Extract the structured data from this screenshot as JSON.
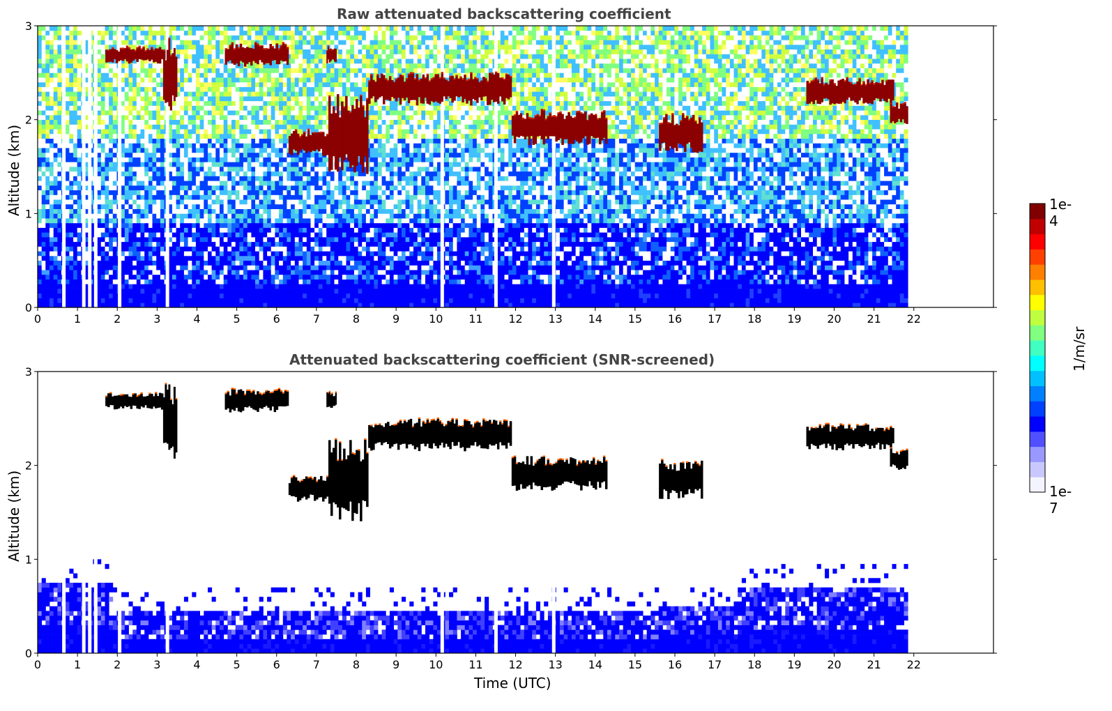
{
  "chart_data": [
    {
      "type": "heatmap",
      "title": "Raw attenuated backscattering coefficient",
      "xlabel": "",
      "ylabel": "Altitude (km)",
      "xlim": [
        0,
        24
      ],
      "ylim": [
        0,
        3
      ],
      "xticks": [
        "0",
        "1",
        "2",
        "3",
        "4",
        "5",
        "6",
        "7",
        "8",
        "9",
        "10",
        "11",
        "12",
        "13",
        "14",
        "15",
        "16",
        "17",
        "18",
        "19",
        "20",
        "21",
        "22"
      ],
      "yticks": [
        "0",
        "1",
        "2",
        "3"
      ],
      "data_end_hour": 21.85,
      "colorscale": "jet",
      "cloud_layers": [
        {
          "start": 1.7,
          "end": 3.2,
          "altitude": [
            2.62,
            2.75
          ]
        },
        {
          "start": 3.15,
          "end": 3.5,
          "altitude": [
            2.15,
            2.75
          ]
        },
        {
          "start": 4.7,
          "end": 6.3,
          "altitude": [
            2.6,
            2.78
          ]
        },
        {
          "start": 7.25,
          "end": 7.5,
          "altitude": [
            2.62,
            2.76
          ]
        },
        {
          "start": 6.3,
          "end": 7.3,
          "altitude": [
            1.65,
            1.85
          ]
        },
        {
          "start": 7.3,
          "end": 8.3,
          "altitude": [
            1.52,
            2.15
          ]
        },
        {
          "start": 8.3,
          "end": 11.9,
          "altitude": [
            2.2,
            2.45
          ]
        },
        {
          "start": 11.9,
          "end": 14.3,
          "altitude": [
            1.78,
            2.05
          ]
        },
        {
          "start": 15.6,
          "end": 16.7,
          "altitude": [
            1.7,
            2.0
          ]
        },
        {
          "start": 19.3,
          "end": 21.5,
          "altitude": [
            2.2,
            2.4
          ]
        },
        {
          "start": 21.4,
          "end": 21.85,
          "altitude": [
            1.98,
            2.15
          ]
        }
      ],
      "data_gaps_hours": [
        0.65,
        1.15,
        1.3,
        1.45,
        2.05,
        3.25,
        10.15,
        11.5,
        12.95
      ]
    },
    {
      "type": "heatmap",
      "title": "Attenuated backscattering coefficient (SNR-screened)",
      "xlabel": "Time (UTC)",
      "ylabel": "Altitude (km)",
      "xlim": [
        0,
        24
      ],
      "ylim": [
        0,
        3
      ],
      "xticks": [
        "0",
        "1",
        "2",
        "3",
        "4",
        "5",
        "6",
        "7",
        "8",
        "9",
        "10",
        "11",
        "12",
        "13",
        "14",
        "15",
        "16",
        "17",
        "18",
        "19",
        "20",
        "21",
        "22"
      ],
      "yticks": [
        "0",
        "1",
        "2",
        "3"
      ],
      "data_end_hour": 21.85,
      "colorscale": "jet",
      "boundary_layer_top_km": [
        0.75,
        0.45,
        0.4,
        0.4,
        0.5,
        0.75,
        0.75
      ]
    }
  ],
  "colorbar": {
    "label": "1/m/sr",
    "max_label": "1e-4",
    "min_label": "1e-7",
    "colors": [
      "#f4f4ff",
      "#c8c8ff",
      "#9898ff",
      "#5050ff",
      "#0000ff",
      "#0040ff",
      "#0080ff",
      "#00c0ff",
      "#00ffff",
      "#40ffc0",
      "#80ff80",
      "#c0ff40",
      "#ffff00",
      "#ffc000",
      "#ff8000",
      "#ff4000",
      "#ff0000",
      "#c00000",
      "#800000"
    ]
  }
}
